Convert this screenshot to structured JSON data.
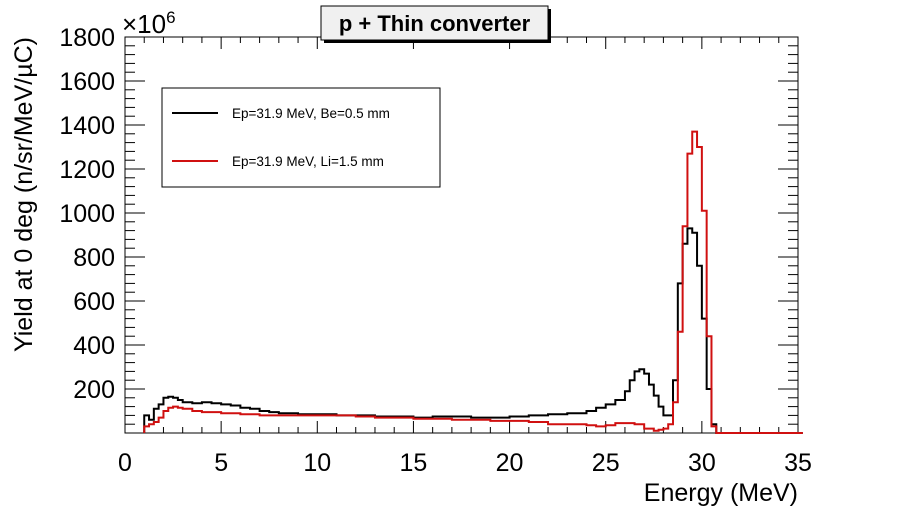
{
  "chart_data": {
    "type": "line",
    "title": "p + Thin converter",
    "xlabel": "Energy (MeV)",
    "ylabel": "Yield at 0 deg (n/sr/MeV/µC)",
    "y_multiplier": "×10",
    "y_multiplier_exp": "6",
    "xlim": [
      0,
      35
    ],
    "ylim": [
      0,
      1800
    ],
    "x_ticks": [
      "0",
      "5",
      "10",
      "15",
      "20",
      "25",
      "30",
      "35"
    ],
    "y_ticks": [
      "200",
      "400",
      "600",
      "800",
      "1000",
      "1200",
      "1400",
      "1600",
      "1800"
    ],
    "legend_position": "top-left",
    "grid": false,
    "bin_width": 0.25,
    "series": [
      {
        "name": "Ep=31.9 MeV, Be=0.5 mm",
        "color": "#000000",
        "x": [
          1.0,
          1.25,
          1.5,
          1.75,
          2.0,
          2.25,
          2.5,
          2.75,
          3.0,
          3.5,
          4.0,
          4.5,
          5.0,
          5.5,
          6.0,
          6.5,
          7.0,
          7.5,
          8.0,
          9.0,
          10.0,
          11.0,
          12.0,
          13.0,
          14.0,
          15.0,
          16.0,
          17.0,
          18.0,
          19.0,
          20.0,
          21.0,
          22.0,
          23.0,
          24.0,
          24.5,
          25.0,
          25.5,
          26.0,
          26.25,
          26.5,
          26.75,
          27.0,
          27.25,
          27.5,
          27.75,
          28.0,
          28.25,
          28.5,
          28.75,
          29.0,
          29.25,
          29.5,
          29.75,
          30.0,
          30.25,
          30.5,
          30.75,
          31.0,
          35.0
        ],
        "y": [
          80,
          60,
          110,
          130,
          160,
          165,
          160,
          150,
          140,
          135,
          140,
          135,
          130,
          125,
          115,
          110,
          100,
          95,
          90,
          85,
          85,
          80,
          80,
          75,
          75,
          70,
          75,
          75,
          70,
          70,
          75,
          80,
          85,
          90,
          100,
          115,
          130,
          150,
          190,
          240,
          280,
          290,
          270,
          220,
          170,
          120,
          80,
          80,
          240,
          680,
          860,
          930,
          910,
          760,
          520,
          200,
          40,
          0,
          0,
          0
        ]
      },
      {
        "name": "Ep=31.9 MeV, Li=1.5 mm",
        "color": "#d01010",
        "x": [
          1.0,
          1.25,
          1.5,
          1.75,
          2.0,
          2.25,
          2.5,
          2.75,
          3.0,
          3.5,
          4.0,
          4.5,
          5.0,
          5.5,
          6.0,
          7.0,
          8.0,
          9.0,
          10.0,
          11.0,
          12.0,
          13.0,
          14.0,
          15.0,
          16.0,
          17.0,
          18.0,
          19.0,
          20.0,
          21.0,
          22.0,
          23.0,
          24.0,
          24.5,
          25.0,
          25.5,
          26.0,
          26.5,
          27.0,
          27.5,
          27.75,
          28.0,
          28.25,
          28.5,
          28.75,
          29.0,
          29.25,
          29.5,
          29.75,
          30.0,
          30.25,
          30.5,
          30.75,
          31.0,
          35.0
        ],
        "y": [
          30,
          40,
          50,
          70,
          100,
          115,
          120,
          115,
          110,
          100,
          95,
          95,
          90,
          90,
          85,
          80,
          80,
          80,
          80,
          80,
          75,
          70,
          70,
          65,
          65,
          60,
          60,
          55,
          55,
          50,
          40,
          40,
          35,
          30,
          35,
          45,
          45,
          40,
          20,
          10,
          15,
          20,
          40,
          140,
          460,
          940,
          1270,
          1370,
          1300,
          1010,
          440,
          30,
          0,
          0,
          0
        ]
      }
    ]
  }
}
